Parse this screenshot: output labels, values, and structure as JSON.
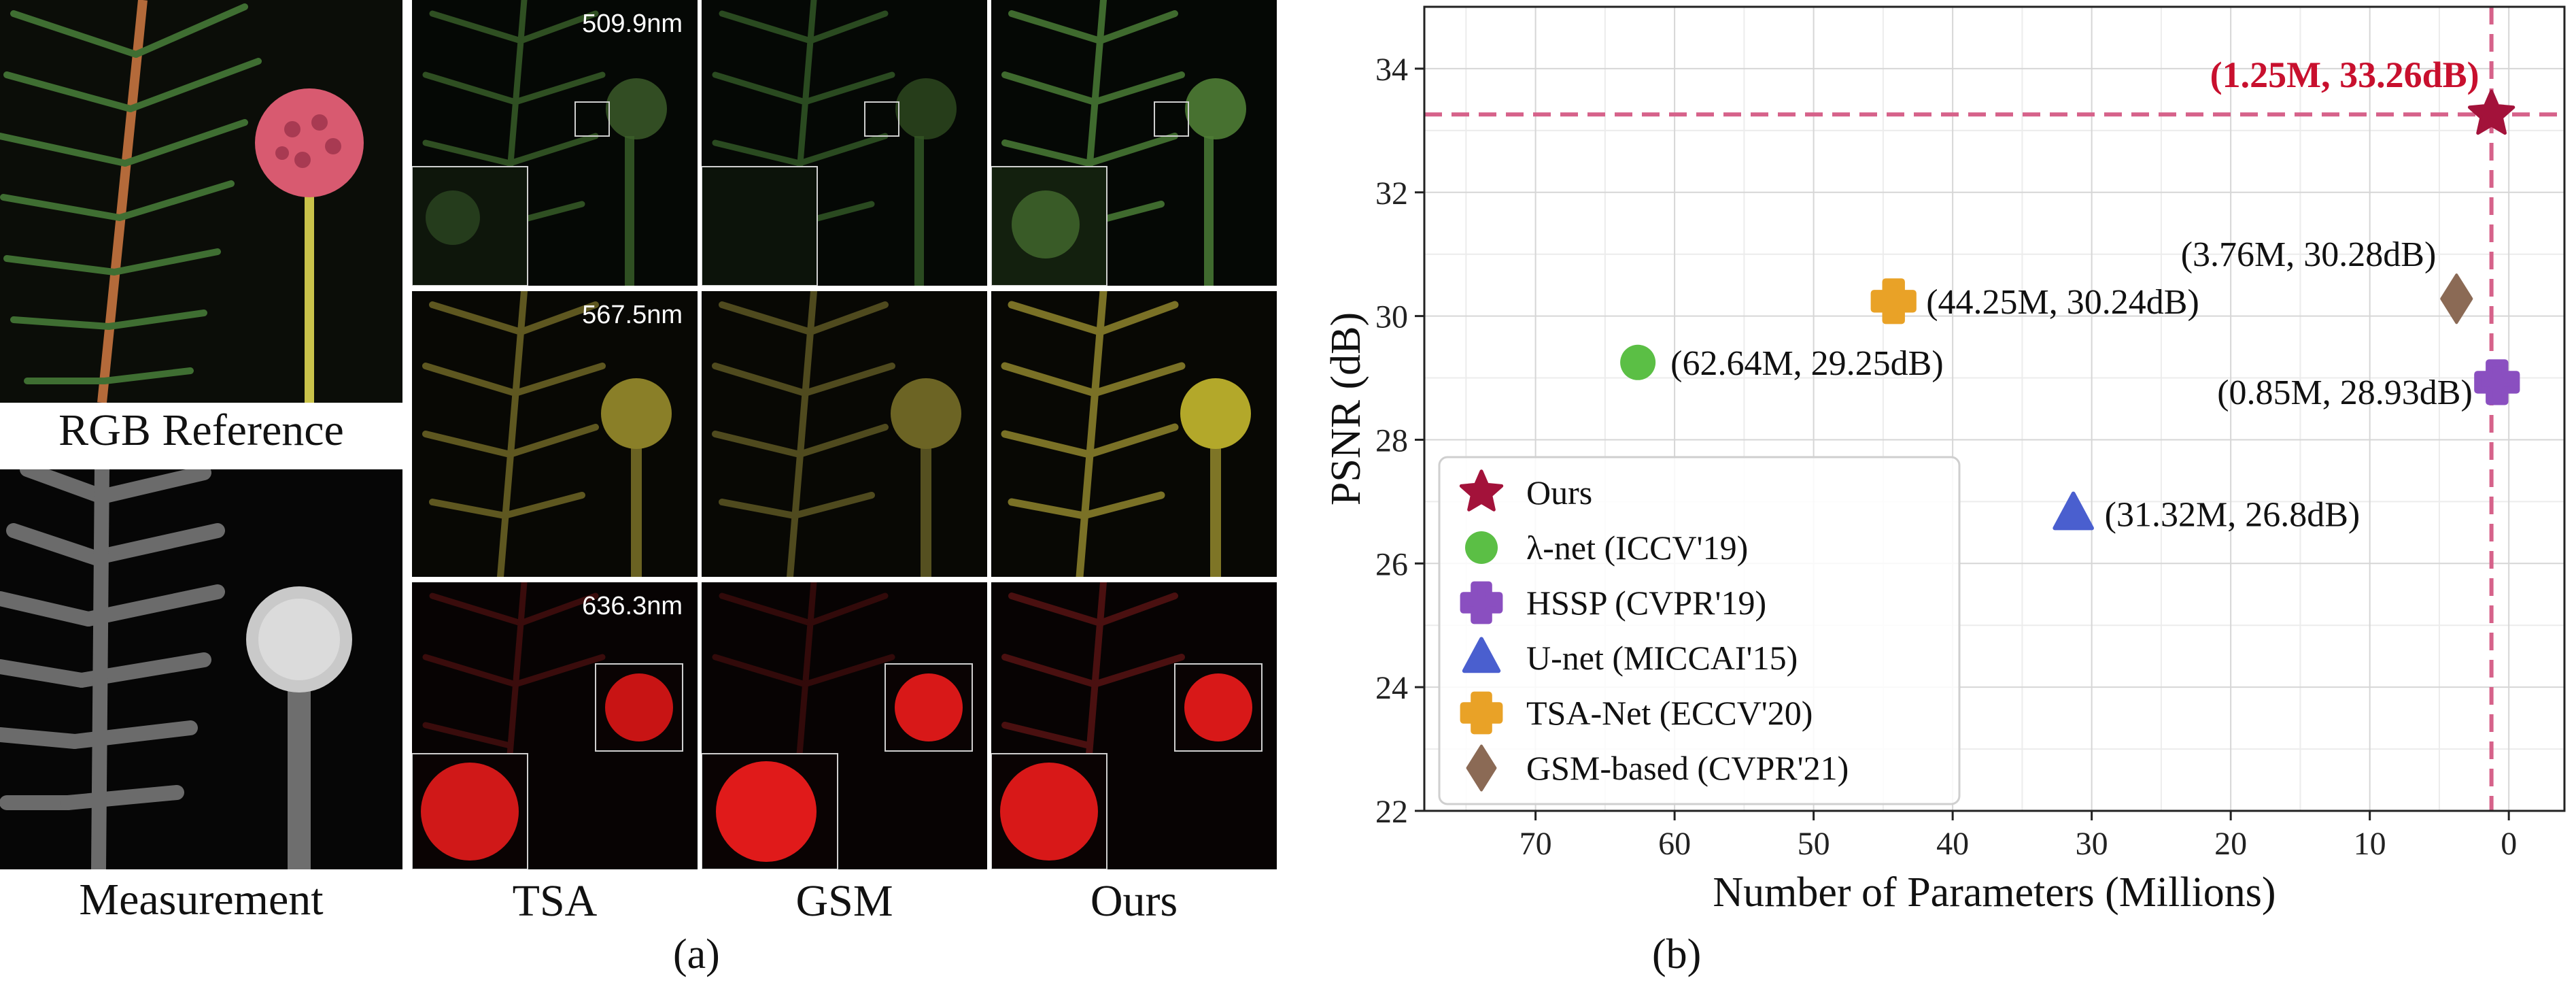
{
  "figure": {
    "panel_a": {
      "label": "(a)",
      "rgb_caption": "RGB Reference",
      "measurement_caption": "Measurement",
      "columns": [
        "TSA",
        "GSM",
        "Ours"
      ],
      "wavelengths": [
        "509.9nm",
        "567.5nm",
        "636.3nm"
      ],
      "colors": {
        "green": "#5a8a35",
        "yellow": "#b3a82a",
        "red": "#d81818"
      }
    },
    "panel_b": {
      "label": "(b)"
    }
  },
  "chart_data": {
    "type": "scatter",
    "xlabel": "Number of Parameters (Millions)",
    "ylabel": "PSNR (dB)",
    "xlim": [
      78,
      -4
    ],
    "ylim": [
      22,
      35
    ],
    "x_inverted": true,
    "xticks": [
      70,
      60,
      50,
      40,
      30,
      20,
      10,
      0
    ],
    "yticks": [
      22,
      24,
      26,
      28,
      30,
      32,
      34
    ],
    "grid": true,
    "legend_position": "lower-left",
    "reference_lines": {
      "x": 1.25,
      "y": 33.26,
      "color": "#d6628a"
    },
    "series": [
      {
        "name": "Ours",
        "x": 1.25,
        "y": 33.26,
        "marker": "star",
        "color": "#a3123a",
        "label": "(1.25M, 33.26dB)",
        "highlight": true
      },
      {
        "name": "λ-net (ICCV'19)",
        "x": 62.64,
        "y": 29.25,
        "marker": "circle",
        "color": "#5bbf45",
        "label": "(62.64M, 29.25dB)"
      },
      {
        "name": "HSSP (CVPR'19)",
        "x": 0.85,
        "y": 28.93,
        "marker": "plus",
        "color": "#8a4fc0",
        "label": "(0.85M, 28.93dB)"
      },
      {
        "name": "U-net (MICCAI'15)",
        "x": 31.32,
        "y": 26.8,
        "marker": "triangle",
        "color": "#4a5fcf",
        "label": "(31.32M, 26.8dB)"
      },
      {
        "name": "TSA-Net (ECCV'20)",
        "x": 44.25,
        "y": 30.24,
        "marker": "plus",
        "color": "#e9a227",
        "label": "(44.25M, 30.24dB)"
      },
      {
        "name": "GSM-based (CVPR'21)",
        "x": 3.76,
        "y": 30.28,
        "marker": "diamond",
        "color": "#8b6a55",
        "label": "(3.76M, 30.28dB)"
      }
    ]
  }
}
